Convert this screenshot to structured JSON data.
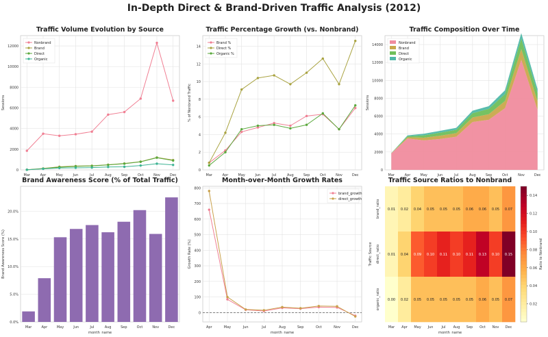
{
  "title": "In-Depth Direct & Brand-Driven Traffic Analysis (2012)",
  "chart_data": [
    {
      "type": "line",
      "title": "Traffic Volume Evolution by Source",
      "xlabel": "",
      "ylabel": "Sessions",
      "categories": [
        "Mar",
        "Apr",
        "May",
        "Jun",
        "Jul",
        "Aug",
        "Sep",
        "Oct",
        "Nov",
        "Dec"
      ],
      "ylim": [
        0,
        13000
      ],
      "yticks": [
        0,
        2000,
        4000,
        6000,
        8000,
        10000,
        12000
      ],
      "legend": "top-left",
      "grid": true,
      "series": [
        {
          "name": "Nonbrand",
          "color": "#f07f93",
          "marker": "circle",
          "values": [
            1850,
            3500,
            3300,
            3450,
            3700,
            5350,
            5600,
            6900,
            12300,
            6700
          ]
        },
        {
          "name": "Brand",
          "color": "#a8a23f",
          "marker": "circle",
          "values": [
            15,
            140,
            300,
            370,
            400,
            500,
            620,
            800,
            1200,
            950
          ]
        },
        {
          "name": "Direct",
          "color": "#5aa83c",
          "marker": "circle",
          "values": [
            10,
            120,
            260,
            340,
            380,
            480,
            600,
            780,
            1180,
            900
          ]
        },
        {
          "name": "Organic",
          "color": "#3cb393",
          "marker": "circle",
          "values": [
            10,
            100,
            180,
            200,
            220,
            280,
            300,
            420,
            600,
            480
          ]
        }
      ]
    },
    {
      "type": "line",
      "title": "Traffic Percentage Growth (vs. Nonbrand)",
      "xlabel": "",
      "ylabel": "% of Nonbrand Traffic",
      "categories": [
        "Mar",
        "Apr",
        "May",
        "Jun",
        "Jul",
        "Aug",
        "Sep",
        "Oct",
        "Nov",
        "Dec"
      ],
      "ylim": [
        0,
        15.2
      ],
      "yticks": [
        0,
        2,
        4,
        6,
        8,
        10,
        12,
        14
      ],
      "legend": "top-left",
      "grid": true,
      "series": [
        {
          "name": "Brand %",
          "color": "#f07f93",
          "marker": "circle",
          "values": [
            0.8,
            2.2,
            4.3,
            4.8,
            5.3,
            5.0,
            6.1,
            6.3,
            4.6,
            7.0
          ]
        },
        {
          "name": "Direct %",
          "color": "#a8a23f",
          "marker": "circle",
          "values": [
            0.8,
            4.2,
            9.1,
            10.4,
            10.7,
            9.7,
            11.0,
            12.6,
            9.7,
            14.6
          ]
        },
        {
          "name": "Organic %",
          "color": "#5aa83c",
          "marker": "circle",
          "values": [
            0.5,
            2.0,
            4.6,
            5.0,
            5.1,
            4.7,
            5.1,
            6.4,
            4.6,
            7.3
          ]
        }
      ]
    },
    {
      "type": "area",
      "stacked": true,
      "title": "Traffic Composition Over Time",
      "xlabel": "",
      "ylabel": "Sessions",
      "categories": [
        "Mar",
        "Apr",
        "May",
        "Jun",
        "Jul",
        "Aug",
        "Sep",
        "Oct",
        "Nov",
        "Dec"
      ],
      "ylim": [
        0,
        15000
      ],
      "yticks": [
        0,
        2000,
        4000,
        6000,
        8000,
        10000,
        12000,
        14000
      ],
      "legend": "top-left",
      "grid": true,
      "series": [
        {
          "name": "Nonbrand",
          "color": "#f08c9e",
          "values": [
            1850,
            3500,
            3300,
            3450,
            3700,
            5350,
            5600,
            6900,
            12300,
            6700
          ]
        },
        {
          "name": "Brand",
          "color": "#c9a84c",
          "values": [
            15,
            140,
            300,
            370,
            400,
            500,
            620,
            800,
            1200,
            950
          ]
        },
        {
          "name": "Direct",
          "color": "#6fbf5a",
          "values": [
            10,
            120,
            260,
            340,
            380,
            480,
            600,
            780,
            1180,
            900
          ]
        },
        {
          "name": "Organic",
          "color": "#4fb8a8",
          "values": [
            10,
            100,
            180,
            200,
            220,
            280,
            300,
            420,
            600,
            480
          ]
        }
      ]
    },
    {
      "type": "bar",
      "title": "Brand Awareness Score (% of Total Traffic)",
      "xlabel": "month_name",
      "ylabel": "Brand Awareness Score (%)",
      "categories": [
        "Mar",
        "Apr",
        "May",
        "Jun",
        "Jul",
        "Aug",
        "Sep",
        "Oct",
        "Nov",
        "Dec"
      ],
      "values": [
        1.9,
        7.9,
        15.3,
        16.8,
        17.5,
        16.2,
        18.1,
        20.2,
        15.9,
        22.5
      ],
      "ylim": [
        0,
        24.5
      ],
      "yticks": [
        0,
        5,
        10,
        15,
        20
      ],
      "ytick_labels": [
        "0.0%",
        "5.0%",
        "10.0%",
        "15.0%",
        "20.0%"
      ],
      "color": "#8e6bb0",
      "grid": true
    },
    {
      "type": "line",
      "title": "Month-over-Month Growth Rates",
      "xlabel": "month_name",
      "ylabel": "Growth Rate (%)",
      "categories": [
        "Apr",
        "May",
        "Jun",
        "Jul",
        "Aug",
        "Sep",
        "Oct",
        "Nov",
        "Dec"
      ],
      "ylim": [
        -60,
        810
      ],
      "yticks": [
        0,
        100,
        200,
        300,
        400,
        500,
        600,
        700,
        800
      ],
      "reference_line": 0,
      "legend": "top-right",
      "grid": true,
      "series": [
        {
          "name": "brand_growth",
          "color": "#f07f93",
          "marker": "circle",
          "values": [
            660,
            85,
            18,
            10,
            30,
            25,
            35,
            33,
            -20
          ]
        },
        {
          "name": "direct_growth",
          "color": "#c9a04a",
          "marker": "circle",
          "values": [
            780,
            100,
            20,
            15,
            35,
            28,
            42,
            40,
            -25
          ]
        }
      ]
    },
    {
      "type": "heatmap",
      "title": "Traffic Source Ratios to Nonbrand",
      "xlabel": "month_name",
      "ylabel": "Traffic Source",
      "categories": [
        "Mar",
        "Apr",
        "May",
        "Jun",
        "Jul",
        "Aug",
        "Sep",
        "Oct",
        "Nov",
        "Dec"
      ],
      "rows": [
        "brand_ratio",
        "direct_ratio",
        "organic_ratio"
      ],
      "values": [
        [
          0.01,
          0.02,
          0.04,
          0.05,
          0.05,
          0.05,
          0.06,
          0.06,
          0.05,
          0.07
        ],
        [
          0.01,
          0.04,
          0.09,
          0.1,
          0.11,
          0.1,
          0.11,
          0.13,
          0.1,
          0.15
        ],
        [
          0.0,
          0.02,
          0.05,
          0.05,
          0.05,
          0.05,
          0.05,
          0.06,
          0.05,
          0.07
        ]
      ],
      "value_labels": [
        [
          "0.01",
          "0.02",
          "0.04",
          "0.05",
          "0.05",
          "0.05",
          "0.06",
          "0.06",
          "0.05",
          "0.07"
        ],
        [
          "0.01",
          "0.04",
          "0.09",
          "0.10",
          "0.11",
          "0.10",
          "0.11",
          "0.13",
          "0.10",
          "0.15"
        ],
        [
          "0.00",
          "0.02",
          "0.05",
          "0.05",
          "0.05",
          "0.05",
          "0.05",
          "0.06",
          "0.05",
          "0.07"
        ]
      ],
      "colorbar_label": "Ratio to Nonbrand",
      "colorbar_ticks": [
        0.02,
        0.04,
        0.06,
        0.08,
        0.1,
        0.12,
        0.14
      ],
      "colorbar_tick_labels": [
        "0.02",
        "0.04",
        "0.06",
        "0.08",
        "0.10",
        "0.12",
        "0.14"
      ],
      "colormap": "YlOrRd",
      "vmin": 0.0,
      "vmax": 0.15
    }
  ]
}
